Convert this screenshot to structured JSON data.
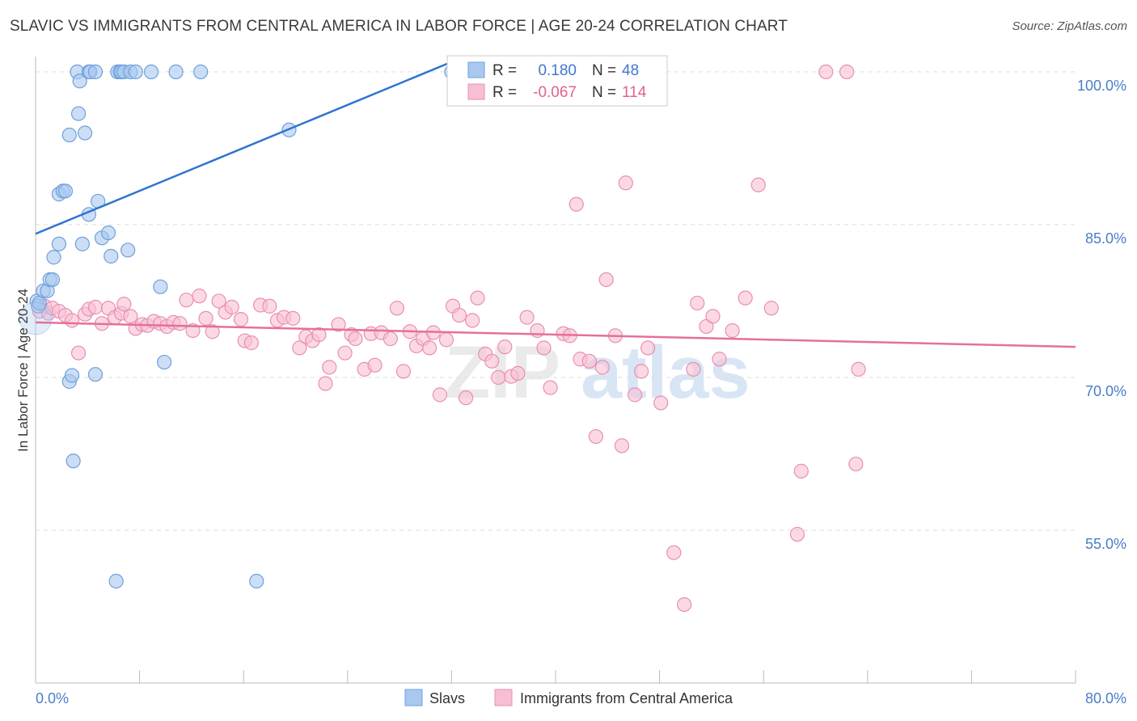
{
  "title": "SLAVIC VS IMMIGRANTS FROM CENTRAL AMERICA IN LABOR FORCE | AGE 20-24 CORRELATION CHART",
  "source": "Source: ZipAtlas.com",
  "watermark": {
    "zip": "ZIP",
    "atlas": "atlas"
  },
  "colors": {
    "blue_fill": "#a9c8f0",
    "blue_stroke": "#6f9fdc",
    "blue_line": "#2f73d0",
    "pink_fill": "#f7bfd3",
    "pink_stroke": "#e98fb1",
    "pink_line": "#e5709a",
    "grid": "#dddddd",
    "tick_text": "#4a7cc9"
  },
  "stats": {
    "r_label": "R =",
    "n_label": "N =",
    "rows": [
      {
        "series": "Slavs",
        "r": "0.180",
        "n": "48"
      },
      {
        "series": "Immigrants from Central America",
        "r": "-0.067",
        "n": "114"
      }
    ]
  },
  "chart_data": {
    "type": "scatter",
    "title": "SLAVIC VS IMMIGRANTS FROM CENTRAL AMERICA IN LABOR FORCE | AGE 20-24 CORRELATION CHART",
    "xlabel": "",
    "ylabel": "In Labor Force | Age 20-24",
    "xlim": [
      0,
      80
    ],
    "ylim": [
      40,
      101.5
    ],
    "x_ticks": [
      0,
      8,
      16,
      24,
      32,
      40,
      48,
      56,
      64,
      72,
      80
    ],
    "x_tick_labels": {
      "0": "0.0%",
      "80": "80.0%"
    },
    "y_ticks": [
      55,
      70,
      85,
      100
    ],
    "y_tick_labels": [
      "55.0%",
      "70.0%",
      "85.0%",
      "100.0%"
    ],
    "grid": true,
    "legend_position": "bottom-center",
    "series": [
      {
        "name": "Slavs",
        "trend": {
          "x": [
            0,
            33
          ],
          "y": [
            84.1,
            101.5
          ]
        },
        "points": [
          {
            "x": 0.1,
            "y": 77.5
          },
          {
            "x": 0.2,
            "y": 77.0
          },
          {
            "x": 0.3,
            "y": 77.3
          },
          {
            "x": 0.6,
            "y": 78.5
          },
          {
            "x": 0.9,
            "y": 78.5
          },
          {
            "x": 1.1,
            "y": 79.6
          },
          {
            "x": 1.3,
            "y": 79.6
          },
          {
            "x": 1.4,
            "y": 81.8
          },
          {
            "x": 1.8,
            "y": 83.1
          },
          {
            "x": 1.8,
            "y": 88.0
          },
          {
            "x": 2.1,
            "y": 88.3
          },
          {
            "x": 2.3,
            "y": 88.3
          },
          {
            "x": 2.6,
            "y": 93.8
          },
          {
            "x": 2.6,
            "y": 69.6
          },
          {
            "x": 2.8,
            "y": 70.2
          },
          {
            "x": 2.9,
            "y": 61.8
          },
          {
            "x": 3.2,
            "y": 100.0
          },
          {
            "x": 3.4,
            "y": 99.1
          },
          {
            "x": 3.3,
            "y": 95.9
          },
          {
            "x": 3.6,
            "y": 83.1
          },
          {
            "x": 3.8,
            "y": 94.0
          },
          {
            "x": 4.1,
            "y": 86.0
          },
          {
            "x": 4.1,
            "y": 100.0
          },
          {
            "x": 4.2,
            "y": 100.0
          },
          {
            "x": 4.6,
            "y": 100.0
          },
          {
            "x": 4.6,
            "y": 70.3
          },
          {
            "x": 4.8,
            "y": 87.3
          },
          {
            "x": 5.1,
            "y": 83.7
          },
          {
            "x": 5.6,
            "y": 84.2
          },
          {
            "x": 5.8,
            "y": 81.9
          },
          {
            "x": 6.2,
            "y": 50.0
          },
          {
            "x": 6.3,
            "y": 100.0
          },
          {
            "x": 6.5,
            "y": 100.0
          },
          {
            "x": 6.6,
            "y": 100.0
          },
          {
            "x": 6.8,
            "y": 100.0
          },
          {
            "x": 7.1,
            "y": 82.5
          },
          {
            "x": 7.3,
            "y": 100.0
          },
          {
            "x": 7.7,
            "y": 100.0
          },
          {
            "x": 8.9,
            "y": 100.0
          },
          {
            "x": 9.6,
            "y": 78.9
          },
          {
            "x": 9.9,
            "y": 71.5
          },
          {
            "x": 10.8,
            "y": 100.0
          },
          {
            "x": 12.7,
            "y": 100.0
          },
          {
            "x": 17.0,
            "y": 50.0
          },
          {
            "x": 19.5,
            "y": 94.3
          },
          {
            "x": 32.0,
            "y": 100.0
          }
        ]
      },
      {
        "name": "Immigrants from Central America",
        "trend": {
          "x": [
            0,
            80
          ],
          "y": [
            75.4,
            73.0
          ]
        },
        "points": [
          {
            "x": 0.3,
            "y": 76.5
          },
          {
            "x": 0.7,
            "y": 77.0
          },
          {
            "x": 1.0,
            "y": 76.3
          },
          {
            "x": 1.3,
            "y": 76.8
          },
          {
            "x": 1.8,
            "y": 76.5
          },
          {
            "x": 2.3,
            "y": 76.1
          },
          {
            "x": 2.8,
            "y": 75.6
          },
          {
            "x": 3.3,
            "y": 72.4
          },
          {
            "x": 3.8,
            "y": 76.2
          },
          {
            "x": 4.1,
            "y": 76.7
          },
          {
            "x": 4.6,
            "y": 76.9
          },
          {
            "x": 5.1,
            "y": 75.3
          },
          {
            "x": 5.6,
            "y": 76.8
          },
          {
            "x": 6.1,
            "y": 75.9
          },
          {
            "x": 6.6,
            "y": 76.3
          },
          {
            "x": 6.8,
            "y": 77.2
          },
          {
            "x": 7.3,
            "y": 76.0
          },
          {
            "x": 7.7,
            "y": 74.8
          },
          {
            "x": 8.2,
            "y": 75.2
          },
          {
            "x": 8.6,
            "y": 75.1
          },
          {
            "x": 9.1,
            "y": 75.5
          },
          {
            "x": 9.6,
            "y": 75.3
          },
          {
            "x": 10.1,
            "y": 75.0
          },
          {
            "x": 10.6,
            "y": 75.4
          },
          {
            "x": 11.1,
            "y": 75.3
          },
          {
            "x": 11.6,
            "y": 77.6
          },
          {
            "x": 12.1,
            "y": 74.6
          },
          {
            "x": 12.6,
            "y": 78.0
          },
          {
            "x": 13.1,
            "y": 75.8
          },
          {
            "x": 13.6,
            "y": 74.5
          },
          {
            "x": 14.1,
            "y": 77.5
          },
          {
            "x": 14.6,
            "y": 76.4
          },
          {
            "x": 15.1,
            "y": 76.9
          },
          {
            "x": 15.8,
            "y": 75.7
          },
          {
            "x": 16.1,
            "y": 73.6
          },
          {
            "x": 16.6,
            "y": 73.4
          },
          {
            "x": 17.3,
            "y": 77.1
          },
          {
            "x": 18.0,
            "y": 77.0
          },
          {
            "x": 18.6,
            "y": 75.6
          },
          {
            "x": 19.1,
            "y": 75.9
          },
          {
            "x": 19.8,
            "y": 75.8
          },
          {
            "x": 20.3,
            "y": 72.9
          },
          {
            "x": 20.8,
            "y": 74.0
          },
          {
            "x": 21.3,
            "y": 73.6
          },
          {
            "x": 21.8,
            "y": 74.2
          },
          {
            "x": 22.3,
            "y": 69.4
          },
          {
            "x": 22.6,
            "y": 71.0
          },
          {
            "x": 23.3,
            "y": 75.2
          },
          {
            "x": 23.8,
            "y": 72.4
          },
          {
            "x": 24.3,
            "y": 74.2
          },
          {
            "x": 24.6,
            "y": 73.8
          },
          {
            "x": 25.3,
            "y": 70.8
          },
          {
            "x": 25.8,
            "y": 74.3
          },
          {
            "x": 26.1,
            "y": 71.2
          },
          {
            "x": 26.6,
            "y": 74.4
          },
          {
            "x": 27.3,
            "y": 73.8
          },
          {
            "x": 27.8,
            "y": 76.8
          },
          {
            "x": 28.3,
            "y": 70.6
          },
          {
            "x": 28.8,
            "y": 74.5
          },
          {
            "x": 29.3,
            "y": 73.1
          },
          {
            "x": 29.8,
            "y": 73.8
          },
          {
            "x": 30.3,
            "y": 72.9
          },
          {
            "x": 30.6,
            "y": 74.4
          },
          {
            "x": 31.1,
            "y": 68.3
          },
          {
            "x": 31.6,
            "y": 73.7
          },
          {
            "x": 32.1,
            "y": 77.0
          },
          {
            "x": 32.6,
            "y": 76.1
          },
          {
            "x": 33.1,
            "y": 68.0
          },
          {
            "x": 33.6,
            "y": 75.6
          },
          {
            "x": 34.0,
            "y": 77.8
          },
          {
            "x": 34.6,
            "y": 72.3
          },
          {
            "x": 35.1,
            "y": 71.6
          },
          {
            "x": 35.6,
            "y": 70.0
          },
          {
            "x": 36.1,
            "y": 73.0
          },
          {
            "x": 36.6,
            "y": 70.1
          },
          {
            "x": 37.1,
            "y": 70.4
          },
          {
            "x": 37.8,
            "y": 75.9
          },
          {
            "x": 38.6,
            "y": 74.6
          },
          {
            "x": 39.1,
            "y": 72.9
          },
          {
            "x": 39.6,
            "y": 69.0
          },
          {
            "x": 40.6,
            "y": 74.3
          },
          {
            "x": 41.1,
            "y": 74.1
          },
          {
            "x": 41.6,
            "y": 87.0
          },
          {
            "x": 41.9,
            "y": 71.8
          },
          {
            "x": 42.6,
            "y": 71.6
          },
          {
            "x": 43.1,
            "y": 64.2
          },
          {
            "x": 43.6,
            "y": 71.0
          },
          {
            "x": 43.9,
            "y": 79.6
          },
          {
            "x": 44.6,
            "y": 74.1
          },
          {
            "x": 45.1,
            "y": 63.3
          },
          {
            "x": 45.4,
            "y": 89.1
          },
          {
            "x": 46.1,
            "y": 68.3
          },
          {
            "x": 46.6,
            "y": 70.6
          },
          {
            "x": 47.1,
            "y": 72.9
          },
          {
            "x": 48.1,
            "y": 67.5
          },
          {
            "x": 49.1,
            "y": 52.8
          },
          {
            "x": 49.9,
            "y": 47.7
          },
          {
            "x": 50.6,
            "y": 70.8
          },
          {
            "x": 50.9,
            "y": 77.3
          },
          {
            "x": 51.6,
            "y": 75.0
          },
          {
            "x": 52.1,
            "y": 76.0
          },
          {
            "x": 52.6,
            "y": 71.8
          },
          {
            "x": 53.6,
            "y": 74.6
          },
          {
            "x": 54.6,
            "y": 77.8
          },
          {
            "x": 55.6,
            "y": 88.9
          },
          {
            "x": 56.6,
            "y": 76.8
          },
          {
            "x": 58.6,
            "y": 54.6
          },
          {
            "x": 58.9,
            "y": 60.8
          },
          {
            "x": 60.8,
            "y": 100.0
          },
          {
            "x": 62.4,
            "y": 100.0
          },
          {
            "x": 63.1,
            "y": 61.5
          },
          {
            "x": 63.3,
            "y": 70.8
          }
        ]
      }
    ]
  }
}
